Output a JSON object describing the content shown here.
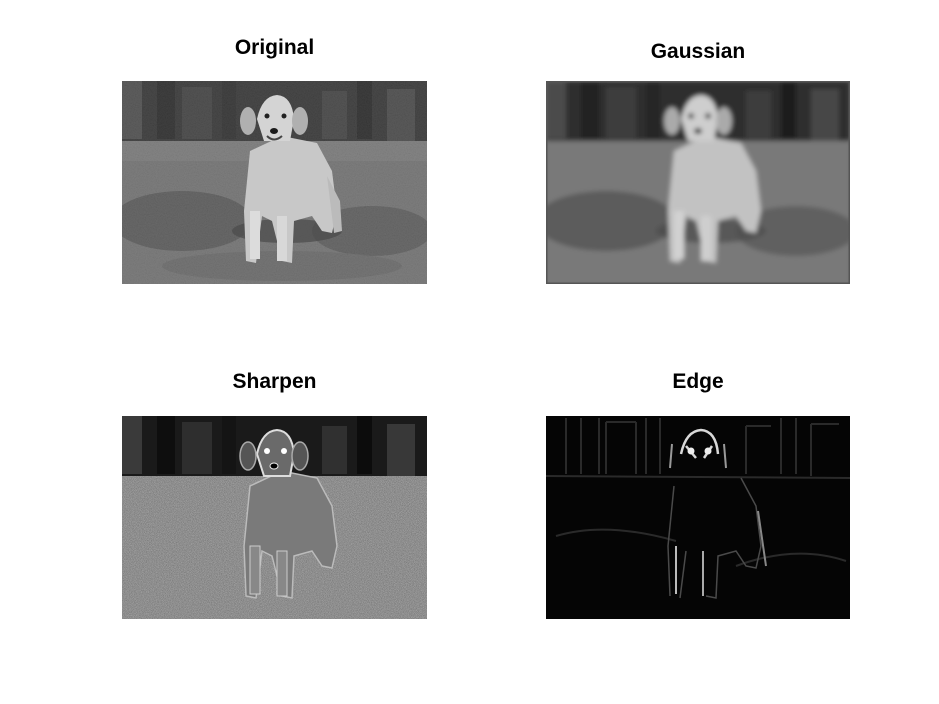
{
  "figure": {
    "panels": [
      {
        "id": "original",
        "title": "Original",
        "image": "grayscale photo of a golden retriever on grass"
      },
      {
        "id": "gaussian",
        "title": "Gaussian",
        "image": "blurred grayscale photo of a golden retriever on grass"
      },
      {
        "id": "sharpen",
        "title": "Sharpen",
        "image": "sharpened grayscale photo of a golden retriever on grass"
      },
      {
        "id": "edge",
        "title": "Edge",
        "image": "edge-detected photo of a dog, white edges on black"
      }
    ]
  },
  "colors": {
    "background": "#ffffff",
    "edge_background": "#050505"
  }
}
